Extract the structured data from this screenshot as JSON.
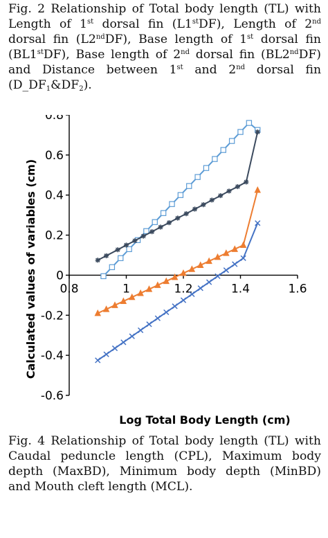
{
  "captions": {
    "top": {
      "l1": "Fig. 2 Relationship of Total body length (TL) with",
      "l2a": "Length of 1",
      "l2b": "st",
      "l2c": " dorsal fin (L1",
      "l2d": "st",
      "l2e": "DF), Length of 2",
      "l2f": "nd",
      "l3a": "dorsal fin (L2",
      "l3b": "nd",
      "l3c": "DF), Base length of 1",
      "l3d": "st",
      "l3e": " dorsal fin",
      "l4a": "(BL1",
      "l4b": "st",
      "l4c": "DF), Base length of 2",
      "l4d": "nd",
      "l4e": " dorsal fin (BL2",
      "l4f": "nd",
      "l4g": "DF)",
      "l5a": "and Distance between 1",
      "l5b": "st",
      "l5c": " and 2",
      "l5d": "nd",
      "l5e": " dorsal fin",
      "l6a": "(D_DF",
      "l6b": "1",
      "l6c": "&DF",
      "l6d": "2",
      "l6e": ")."
    },
    "bottom": {
      "l1": "Fig. 4 Relationship of Total body length (TL) with",
      "l2": "Caudal peduncle length (CPL), Maximum body",
      "l3": "depth (MaxBD), Minimum body depth (MinBD)",
      "l4": "and Mouth cleft length (MCL)."
    }
  },
  "chart_data": {
    "type": "line",
    "xlabel": "Log Total Body Length (cm)",
    "ylabel": "Calculated values of  variables (cm)",
    "xlim": [
      0.8,
      1.6
    ],
    "ylim": [
      -0.6,
      0.8
    ],
    "xticks": [
      "0.8",
      "1",
      "1.2",
      "1.4",
      "1.6"
    ],
    "yticks": [
      "-0.6",
      "-0.4",
      "-0.2",
      "0",
      "0.2",
      "0.4",
      "0.6",
      "0.8"
    ],
    "legend_position": "top",
    "series": [
      {
        "name": "CPL",
        "color": "#3b4a5e",
        "marker": "star",
        "x": [
          0.9,
          0.93,
          0.97,
          1.0,
          1.03,
          1.06,
          1.09,
          1.12,
          1.15,
          1.18,
          1.21,
          1.24,
          1.27,
          1.3,
          1.33,
          1.36,
          1.39,
          1.42,
          1.46
        ],
        "y": [
          0.075,
          0.097,
          0.127,
          0.15,
          0.172,
          0.195,
          0.217,
          0.24,
          0.262,
          0.285,
          0.307,
          0.33,
          0.352,
          0.375,
          0.397,
          0.42,
          0.442,
          0.465,
          0.715
        ]
      },
      {
        "name": "MaxBD",
        "color": "#5b9bd5",
        "marker": "square",
        "x": [
          0.92,
          0.95,
          0.98,
          1.01,
          1.04,
          1.07,
          1.1,
          1.13,
          1.16,
          1.19,
          1.22,
          1.25,
          1.28,
          1.31,
          1.34,
          1.37,
          1.4,
          1.43,
          1.46
        ],
        "y": [
          -0.005,
          0.04,
          0.085,
          0.13,
          0.175,
          0.22,
          0.265,
          0.31,
          0.355,
          0.4,
          0.445,
          0.49,
          0.535,
          0.58,
          0.625,
          0.67,
          0.715,
          0.76,
          0.725
        ]
      },
      {
        "x": [
          0.9,
          0.93,
          0.96,
          0.99,
          1.02,
          1.05,
          1.08,
          1.11,
          1.14,
          1.17,
          1.2,
          1.23,
          1.26,
          1.29,
          1.32,
          1.35,
          1.38,
          1.41,
          1.46
        ],
        "y": [
          -0.19,
          -0.17,
          -0.15,
          -0.13,
          -0.11,
          -0.09,
          -0.07,
          -0.05,
          -0.03,
          -0.01,
          0.01,
          0.03,
          0.05,
          0.07,
          0.09,
          0.11,
          0.13,
          0.15,
          0.425
        ],
        "color": "#ed7d31",
        "marker": "triangle"
      },
      {
        "x": [
          0.9,
          0.93,
          0.96,
          0.99,
          1.02,
          1.05,
          1.08,
          1.11,
          1.14,
          1.17,
          1.2,
          1.23,
          1.26,
          1.29,
          1.32,
          1.35,
          1.38,
          1.41,
          1.46
        ],
        "y": [
          -0.425,
          -0.395,
          -0.365,
          -0.335,
          -0.305,
          -0.275,
          -0.245,
          -0.215,
          -0.185,
          -0.155,
          -0.125,
          -0.095,
          -0.065,
          -0.035,
          -0.005,
          0.025,
          0.055,
          0.085,
          0.26
        ],
        "color": "#4472c4",
        "marker": "x"
      }
    ]
  }
}
